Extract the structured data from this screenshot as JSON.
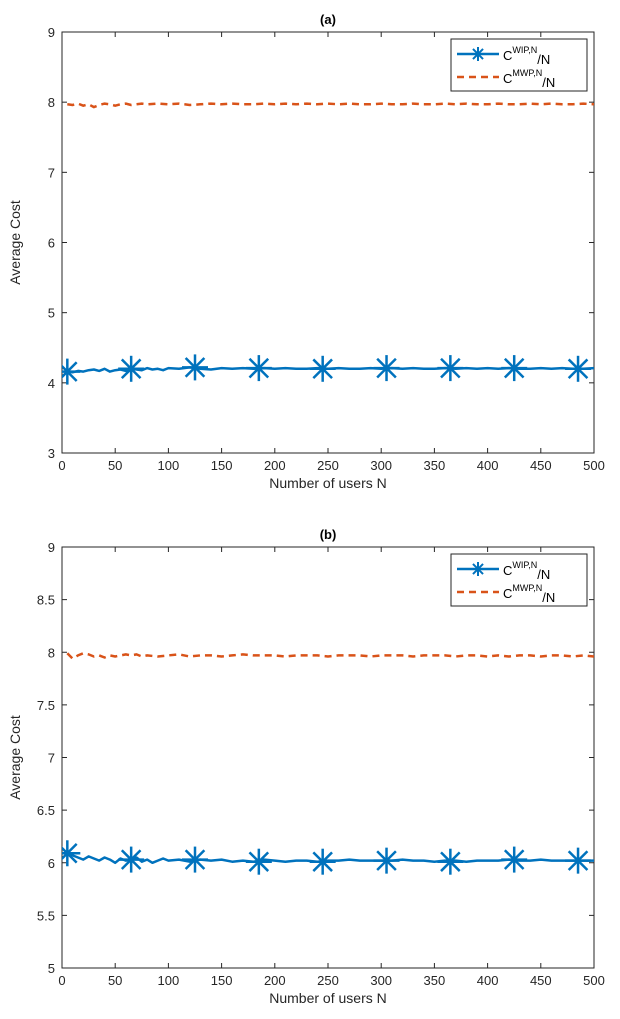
{
  "chart_data": [
    {
      "type": "line",
      "title": "(a)",
      "xlabel": "Number of users N",
      "ylabel": "Average Cost",
      "xlim": [
        0,
        500
      ],
      "ylim": [
        3,
        9
      ],
      "xticks": [
        0,
        50,
        100,
        150,
        200,
        250,
        300,
        350,
        400,
        450,
        500
      ],
      "yticks": [
        3,
        4,
        5,
        6,
        7,
        8,
        9
      ],
      "ytick_labels": [
        "3",
        "4",
        "5",
        "6",
        "7",
        "8",
        "9"
      ],
      "grid": false,
      "legend_position": "top-right",
      "series": [
        {
          "legend": {
            "base": "C",
            "sup": "WIP,N",
            "suffix": "/N"
          },
          "color": "#0072BD",
          "style": "solid",
          "marker": "asterisk",
          "x": [
            5,
            10,
            15,
            20,
            25,
            30,
            35,
            40,
            45,
            50,
            55,
            60,
            65,
            70,
            75,
            80,
            85,
            90,
            95,
            100,
            110,
            120,
            130,
            140,
            150,
            160,
            170,
            180,
            190,
            200,
            210,
            220,
            230,
            240,
            250,
            260,
            270,
            280,
            290,
            300,
            310,
            320,
            330,
            340,
            350,
            360,
            370,
            380,
            390,
            400,
            410,
            420,
            430,
            440,
            450,
            460,
            470,
            480,
            490,
            500
          ],
          "y": [
            4.16,
            4.15,
            4.17,
            4.16,
            4.18,
            4.19,
            4.17,
            4.2,
            4.16,
            4.18,
            4.19,
            4.17,
            4.2,
            4.19,
            4.18,
            4.21,
            4.19,
            4.2,
            4.18,
            4.21,
            4.2,
            4.22,
            4.2,
            4.19,
            4.21,
            4.2,
            4.21,
            4.2,
            4.21,
            4.2,
            4.21,
            4.2,
            4.2,
            4.21,
            4.2,
            4.21,
            4.2,
            4.2,
            4.21,
            4.2,
            4.21,
            4.2,
            4.21,
            4.2,
            4.2,
            4.21,
            4.2,
            4.21,
            4.2,
            4.21,
            4.2,
            4.21,
            4.2,
            4.2,
            4.21,
            4.2,
            4.21,
            4.2,
            4.2,
            4.21
          ],
          "marker_x": [
            5,
            65,
            125,
            185,
            245,
            305,
            365,
            425,
            485
          ],
          "marker_y": [
            4.16,
            4.2,
            4.22,
            4.21,
            4.2,
            4.21,
            4.21,
            4.21,
            4.2
          ]
        },
        {
          "legend": {
            "base": "C",
            "sup": "MWP,N",
            "suffix": "/N"
          },
          "color": "#D95319",
          "style": "dashed",
          "marker": "none",
          "x": [
            5,
            10,
            15,
            20,
            25,
            30,
            35,
            40,
            45,
            50,
            55,
            60,
            65,
            70,
            75,
            80,
            90,
            100,
            110,
            120,
            130,
            140,
            150,
            160,
            170,
            180,
            190,
            200,
            210,
            220,
            230,
            240,
            250,
            260,
            270,
            280,
            290,
            300,
            310,
            320,
            330,
            340,
            350,
            360,
            370,
            380,
            390,
            400,
            410,
            420,
            430,
            440,
            450,
            460,
            470,
            480,
            490,
            500
          ],
          "y": [
            7.97,
            7.96,
            7.98,
            7.95,
            7.97,
            7.93,
            7.96,
            7.98,
            7.97,
            7.95,
            7.97,
            7.98,
            7.96,
            7.97,
            7.98,
            7.97,
            7.98,
            7.97,
            7.98,
            7.96,
            7.97,
            7.98,
            7.97,
            7.98,
            7.97,
            7.97,
            7.98,
            7.97,
            7.98,
            7.97,
            7.98,
            7.97,
            7.98,
            7.97,
            7.98,
            7.97,
            7.97,
            7.98,
            7.97,
            7.97,
            7.98,
            7.97,
            7.97,
            7.98,
            7.97,
            7.98,
            7.97,
            7.97,
            7.98,
            7.97,
            7.97,
            7.98,
            7.97,
            7.98,
            7.97,
            7.97,
            7.98,
            7.97
          ]
        }
      ]
    },
    {
      "type": "line",
      "title": "(b)",
      "xlabel": "Number of users N",
      "ylabel": "Average Cost",
      "xlim": [
        0,
        500
      ],
      "ylim": [
        5,
        9
      ],
      "xticks": [
        0,
        50,
        100,
        150,
        200,
        250,
        300,
        350,
        400,
        450,
        500
      ],
      "yticks": [
        5,
        5.5,
        6,
        6.5,
        7,
        7.5,
        8,
        8.5,
        9
      ],
      "ytick_labels": [
        "5",
        "5.5",
        "6",
        "6.5",
        "7",
        "7.5",
        "8",
        "8.5",
        "9"
      ],
      "grid": false,
      "legend_position": "top-right",
      "series": [
        {
          "legend": {
            "base": "C",
            "sup": "WIP,N",
            "suffix": "/N"
          },
          "color": "#0072BD",
          "style": "solid",
          "marker": "asterisk",
          "x": [
            5,
            10,
            15,
            20,
            25,
            30,
            35,
            40,
            45,
            50,
            55,
            60,
            65,
            70,
            75,
            80,
            85,
            90,
            95,
            100,
            110,
            120,
            130,
            140,
            150,
            160,
            170,
            180,
            190,
            200,
            210,
            220,
            230,
            240,
            250,
            260,
            270,
            280,
            290,
            300,
            310,
            320,
            330,
            340,
            350,
            360,
            370,
            380,
            390,
            400,
            410,
            420,
            430,
            440,
            450,
            460,
            470,
            480,
            490,
            500
          ],
          "y": [
            6.09,
            6.07,
            6.05,
            6.03,
            6.06,
            6.04,
            6.02,
            6.05,
            6.03,
            6.0,
            6.04,
            6.02,
            6.03,
            6.05,
            6.01,
            6.03,
            6.0,
            6.02,
            6.04,
            6.02,
            6.03,
            6.01,
            6.03,
            6.02,
            6.03,
            6.01,
            6.02,
            6.01,
            6.03,
            6.02,
            6.01,
            6.02,
            6.02,
            6.01,
            6.02,
            6.02,
            6.03,
            6.02,
            6.02,
            6.02,
            6.02,
            6.03,
            6.02,
            6.02,
            6.01,
            6.02,
            6.02,
            6.01,
            6.02,
            6.02,
            6.02,
            6.03,
            6.02,
            6.02,
            6.03,
            6.02,
            6.02,
            6.02,
            6.02,
            6.02
          ],
          "marker_x": [
            5,
            65,
            125,
            185,
            245,
            305,
            365,
            425,
            485
          ],
          "marker_y": [
            6.09,
            6.03,
            6.03,
            6.01,
            6.01,
            6.02,
            6.01,
            6.03,
            6.02
          ]
        },
        {
          "legend": {
            "base": "C",
            "sup": "MWP,N",
            "suffix": "/N"
          },
          "color": "#D95319",
          "style": "dashed",
          "marker": "none",
          "x": [
            5,
            10,
            15,
            20,
            25,
            30,
            35,
            40,
            45,
            50,
            55,
            60,
            65,
            70,
            75,
            80,
            90,
            100,
            110,
            120,
            130,
            140,
            150,
            160,
            170,
            180,
            190,
            200,
            210,
            220,
            230,
            240,
            250,
            260,
            270,
            280,
            290,
            300,
            310,
            320,
            330,
            340,
            350,
            360,
            370,
            380,
            390,
            400,
            410,
            420,
            430,
            440,
            450,
            460,
            470,
            480,
            490,
            500
          ],
          "y": [
            7.99,
            7.94,
            7.97,
            7.99,
            7.98,
            7.96,
            7.97,
            7.95,
            7.97,
            7.96,
            7.97,
            7.98,
            7.97,
            7.98,
            7.96,
            7.97,
            7.96,
            7.97,
            7.98,
            7.96,
            7.97,
            7.97,
            7.96,
            7.97,
            7.98,
            7.97,
            7.97,
            7.97,
            7.96,
            7.97,
            7.97,
            7.97,
            7.96,
            7.97,
            7.97,
            7.97,
            7.96,
            7.97,
            7.97,
            7.97,
            7.96,
            7.97,
            7.97,
            7.97,
            7.96,
            7.97,
            7.97,
            7.96,
            7.97,
            7.96,
            7.97,
            7.97,
            7.96,
            7.97,
            7.97,
            7.96,
            7.97,
            7.96
          ]
        }
      ]
    }
  ]
}
